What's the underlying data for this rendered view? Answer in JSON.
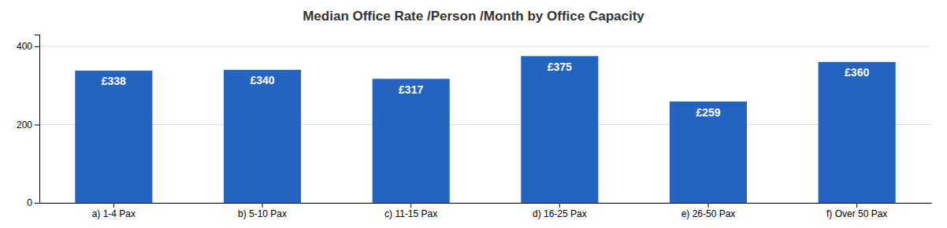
{
  "chart_data": {
    "type": "bar",
    "title": "Median Office Rate /Person /Month by Office Capacity",
    "categories": [
      "a) 1-4 Pax",
      "b) 5-10 Pax",
      "c) 11-15 Pax",
      "d) 16-25 Pax",
      "e) 26-50 Pax",
      "f) Over 50 Pax"
    ],
    "values": [
      338,
      340,
      317,
      375,
      259,
      360
    ],
    "value_labels": [
      "£338",
      "£340",
      "£317",
      "£375",
      "£259",
      "£360"
    ],
    "data_labels": true,
    "color": "#2563C0",
    "ylim": [
      0,
      430
    ],
    "yticks": [
      0,
      200,
      400
    ],
    "grid": true
  }
}
